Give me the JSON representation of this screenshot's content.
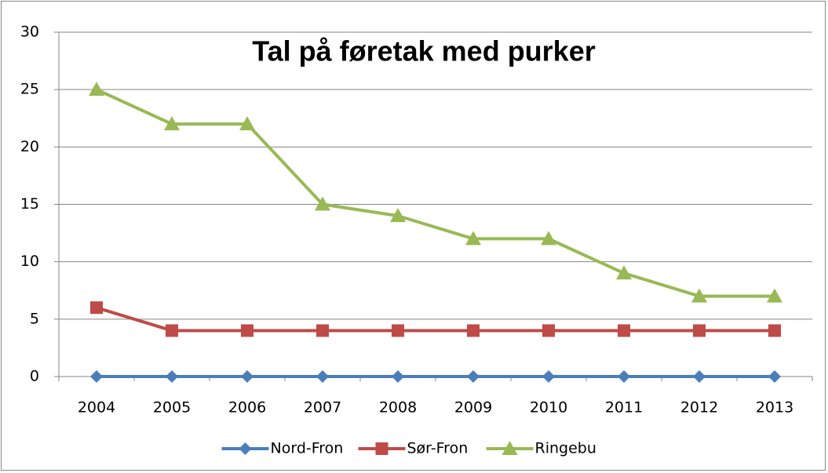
{
  "chart_data": {
    "type": "line",
    "title": "Tal på føretak med purker",
    "categories": [
      "2004",
      "2005",
      "2006",
      "2007",
      "2008",
      "2009",
      "2010",
      "2011",
      "2012",
      "2013"
    ],
    "series": [
      {
        "name": "Nord-Fron",
        "color": "#4a7ebb",
        "marker": "diamond",
        "values": [
          0,
          0,
          0,
          0,
          0,
          0,
          0,
          0,
          0,
          0
        ]
      },
      {
        "name": "Sør-Fron",
        "color": "#be4b48",
        "marker": "square",
        "values": [
          6,
          4,
          4,
          4,
          4,
          4,
          4,
          4,
          4,
          4
        ]
      },
      {
        "name": "Ringebu",
        "color": "#98b954",
        "marker": "triangle",
        "values": [
          25,
          22,
          22,
          15,
          14,
          12,
          12,
          9,
          7,
          7
        ]
      }
    ],
    "ylim": [
      0,
      30
    ],
    "yticks": [
      0,
      5,
      10,
      15,
      20,
      25,
      30
    ],
    "grid": true,
    "legend": "bottom"
  }
}
